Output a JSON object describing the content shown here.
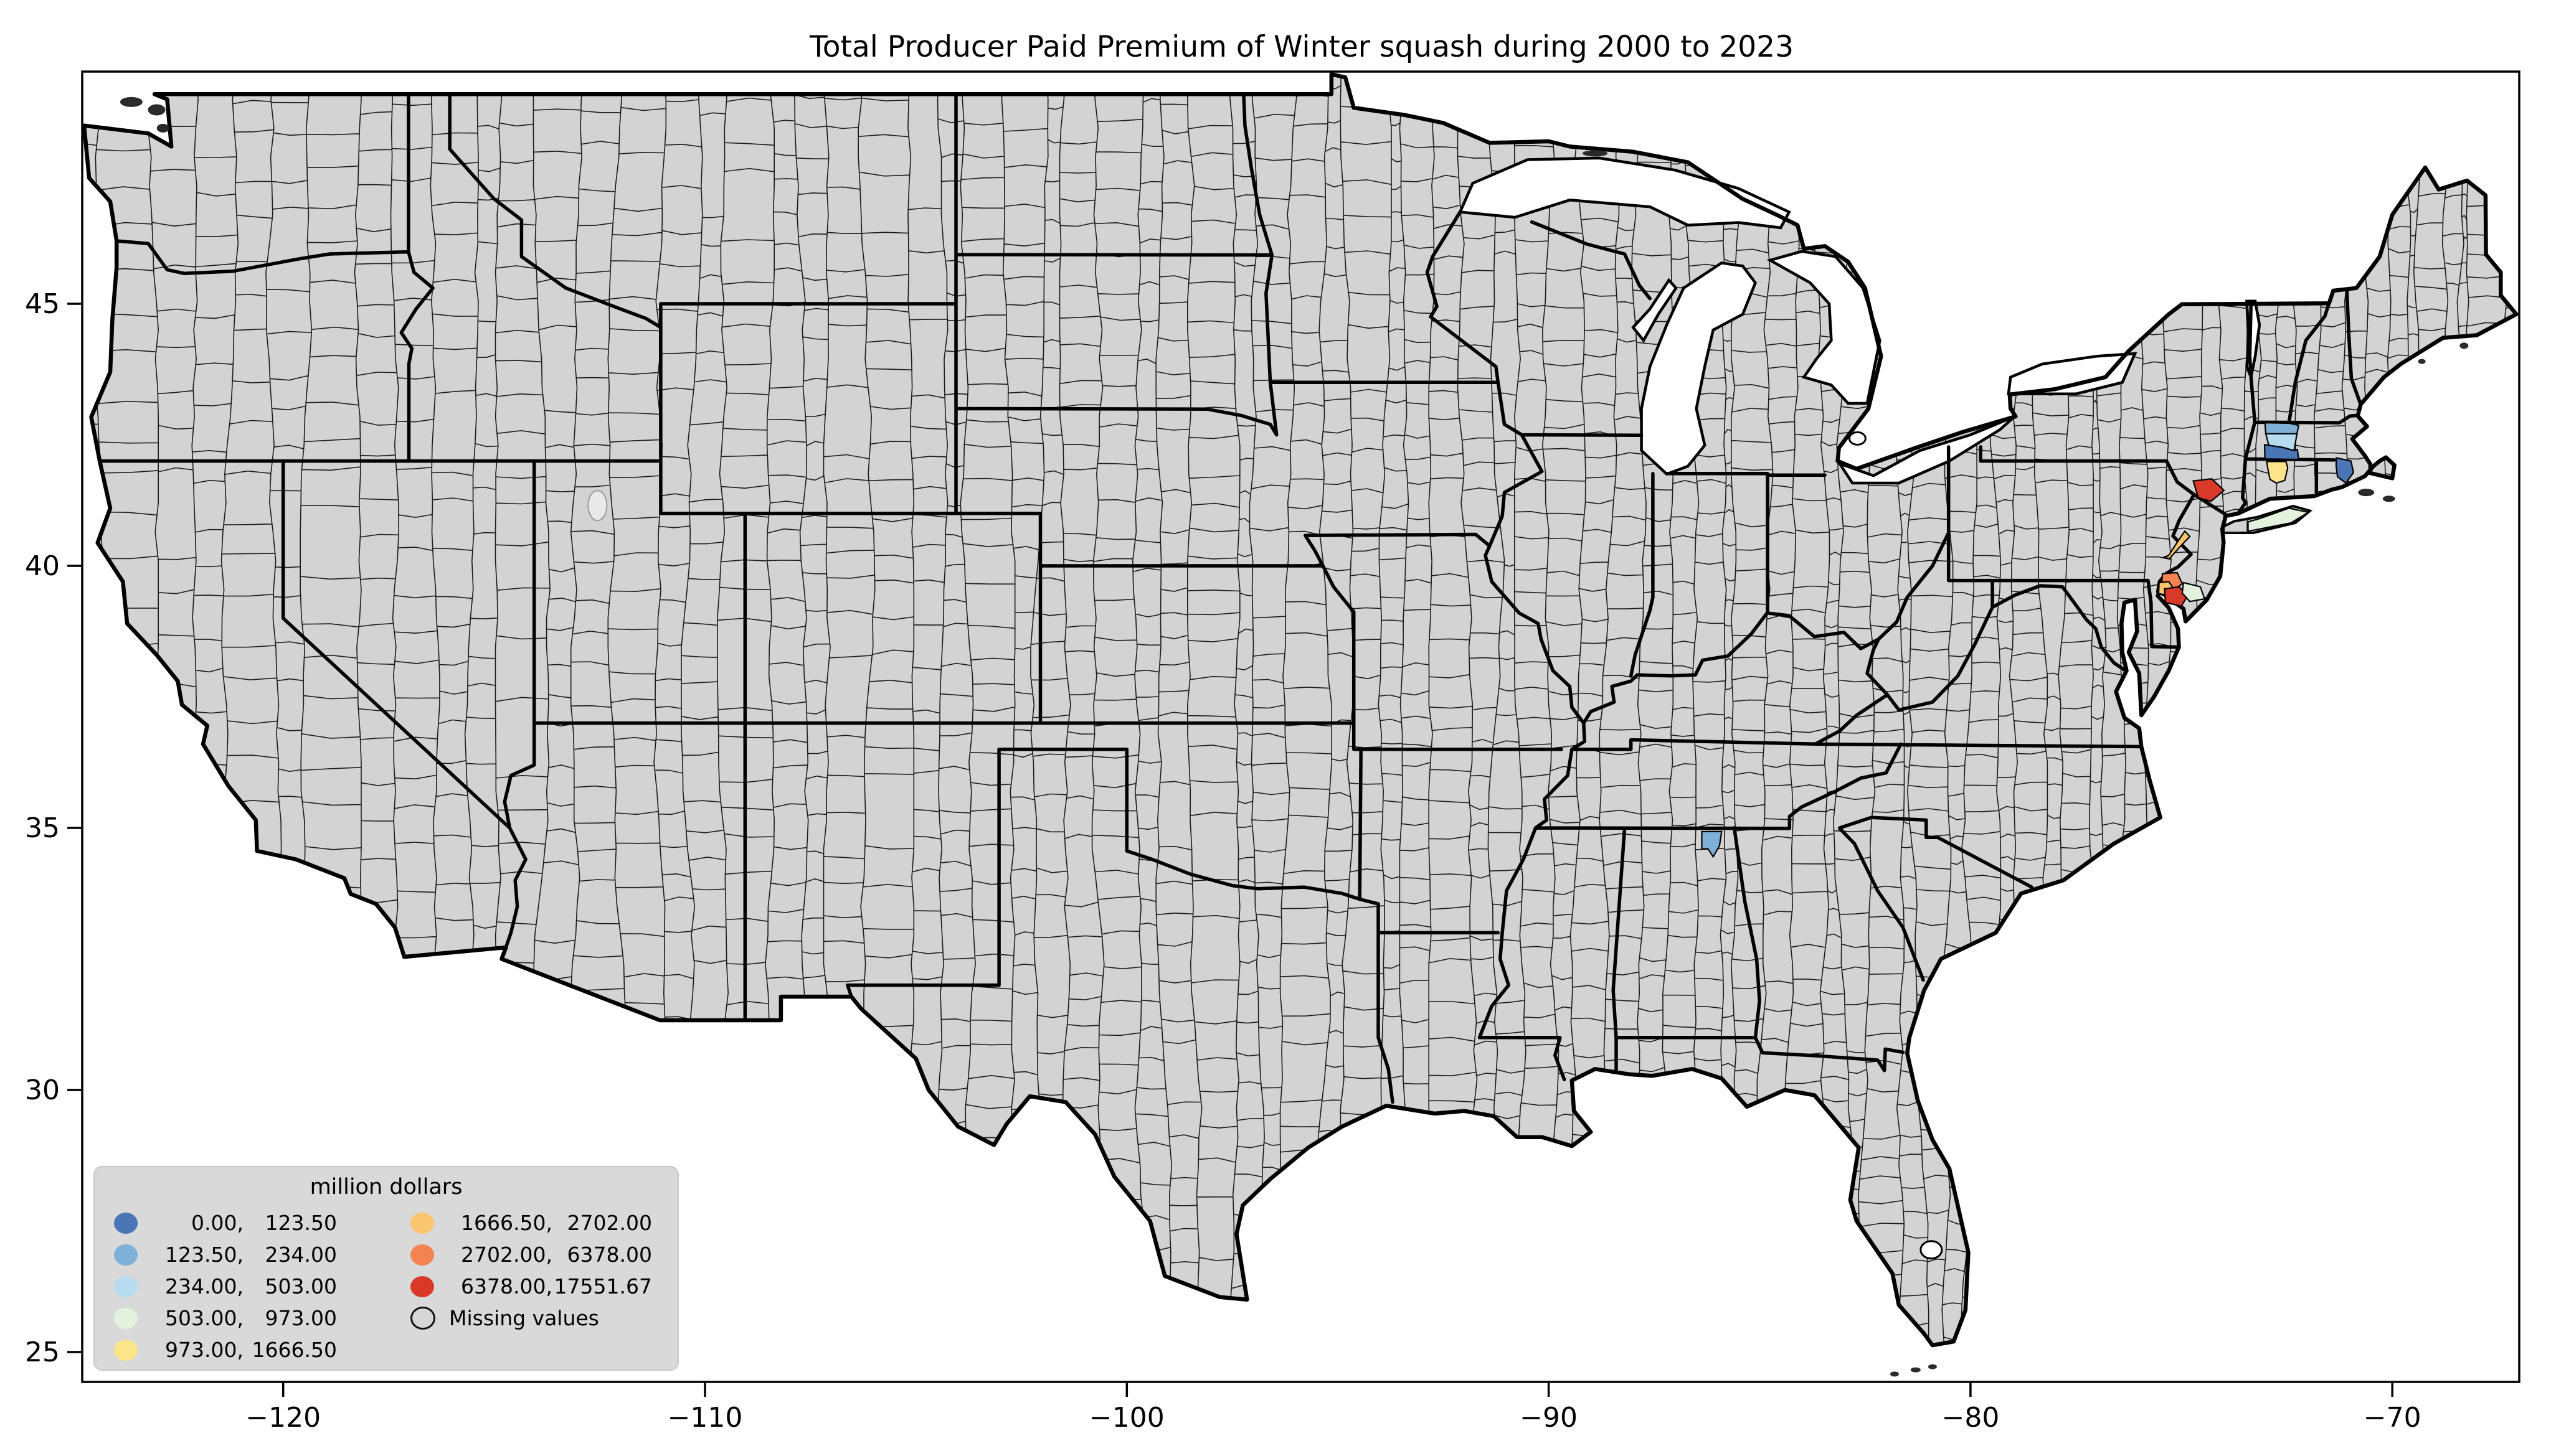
{
  "title": "Total Producer Paid Premium of Winter squash during 2000 to 2023",
  "axes": {
    "x_ticks": [
      "−120",
      "−110",
      "−100",
      "−90",
      "−80",
      "−70"
    ],
    "y_ticks": [
      "25",
      "30",
      "35",
      "40",
      "45"
    ]
  },
  "legend": {
    "title": "million dollars",
    "items": [
      {
        "lo": "0.00,",
        "hi": "123.50",
        "color": "#4A76B5"
      },
      {
        "lo": "123.50,",
        "hi": "234.00",
        "color": "#7FB1D8"
      },
      {
        "lo": "234.00,",
        "hi": "503.00",
        "color": "#B7DCF0"
      },
      {
        "lo": "503.00,",
        "hi": "973.00",
        "color": "#E2F2DC"
      },
      {
        "lo": "973.00,",
        "hi": "1666.50",
        "color": "#FCE588"
      },
      {
        "lo": "1666.50,",
        "hi": "2702.00",
        "color": "#FBC46E"
      },
      {
        "lo": "2702.00,",
        "hi": "6378.00",
        "color": "#F58352"
      },
      {
        "lo": "6378.00,",
        "hi": "17551.67",
        "color": "#D93929"
      }
    ],
    "missing": {
      "label": "Missing values",
      "color": "#D6D6D6"
    }
  },
  "map_colors": {
    "land": "#D3D3D3",
    "county_line": "#1B1B1B",
    "state_line": "#000000",
    "water": "#FFFFFF",
    "frame": "#000000"
  },
  "chart_data": {
    "type": "choropleth-map",
    "title": "Total Producer Paid Premium of Winter squash during 2000 to 2023",
    "units": "million dollars",
    "projection": "longitude/latitude (degrees)",
    "x_axis": {
      "ticks": [
        -120,
        -110,
        -100,
        -90,
        -80,
        -70
      ],
      "range": [
        -124.77,
        -66.97
      ]
    },
    "y_axis": {
      "ticks": [
        25,
        30,
        35,
        40,
        45
      ],
      "range": [
        24.43,
        49.43
      ]
    },
    "bin_edges": [
      0.0,
      123.5,
      234.0,
      503.0,
      973.0,
      1666.5,
      2702.0,
      6378.0,
      17551.67
    ],
    "missing_label": "Missing values",
    "note": "All counties gray (missing) except a cluster in the Northeast and one county in northern Alabama",
    "counties": [
      {
        "id": "western-ma-north",
        "bin": 1
      },
      {
        "id": "western-ma-middle",
        "bin": 2
      },
      {
        "id": "western-ma-south",
        "bin": 0
      },
      {
        "id": "southeast-ma",
        "bin": 0
      },
      {
        "id": "central-ct",
        "bin": 4
      },
      {
        "id": "long-island-east",
        "bin": 3
      },
      {
        "id": "hudson-valley-ny",
        "bin": 7
      },
      {
        "id": "west-central-nj",
        "bin": 5
      },
      {
        "id": "southwest-nj-north",
        "bin": 6
      },
      {
        "id": "southwest-nj-west",
        "bin": 5
      },
      {
        "id": "southwest-nj-south",
        "bin": 7
      },
      {
        "id": "south-nj-east",
        "bin": 3
      },
      {
        "id": "north-al",
        "bin": 1
      }
    ]
  }
}
